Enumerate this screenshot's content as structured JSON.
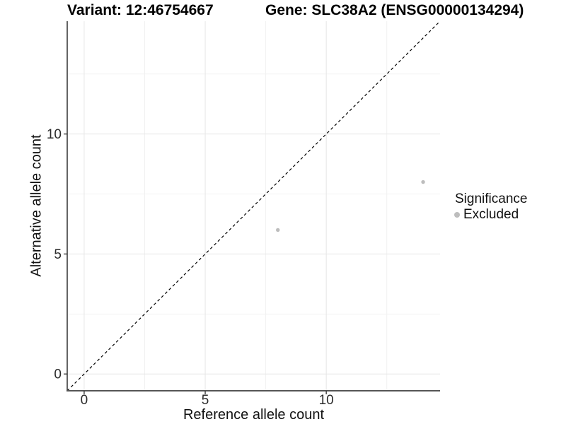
{
  "titles": {
    "variant": "Variant: 12:46754667",
    "gene": "Gene: SLC38A2 (ENSG00000134294)"
  },
  "chart_data": {
    "type": "scatter",
    "title": "",
    "xlabel": "Reference allele count",
    "ylabel": "Alternative allele count",
    "xlim": [
      -0.7,
      14.7
    ],
    "ylim": [
      -0.7,
      14.7
    ],
    "x_ticks": [
      0,
      5,
      10
    ],
    "y_ticks": [
      0,
      5,
      10
    ],
    "minor_gridlines": [
      2.5,
      7.5,
      12.5
    ],
    "grid": "on",
    "reference_line": {
      "kind": "identity",
      "style": "dashed",
      "color": "#000000"
    },
    "series": [
      {
        "name": "Excluded",
        "color": "#bdbdbd",
        "points": [
          {
            "x": 8,
            "y": 6
          },
          {
            "x": 14,
            "y": 8
          }
        ]
      }
    ],
    "legend": {
      "title": "Significance",
      "position": "right",
      "entries": [
        {
          "label": "Excluded",
          "color": "#bdbdbd"
        }
      ]
    }
  },
  "colors": {
    "background": "#ffffff",
    "grid_major": "#e6e6e6",
    "grid_minor": "#f1f1f1",
    "y_axis_line": "#222222",
    "x_axis_line": "#555555",
    "tick_mark": "#333333",
    "tick_text": "#2b2b2b",
    "point": "#bdbdbd"
  }
}
